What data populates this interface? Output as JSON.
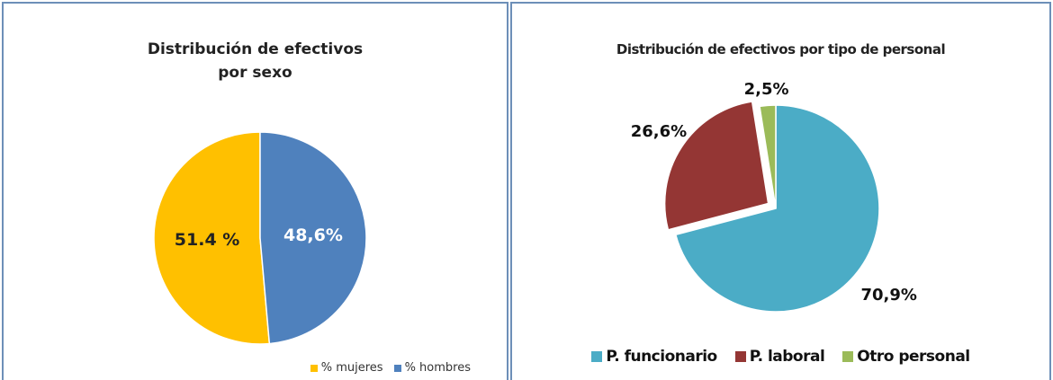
{
  "chart_data": [
    {
      "type": "pie",
      "title": "Distribución de efectivos por sexo",
      "categories": [
        "% mujeres",
        "% hombres"
      ],
      "values": [
        51.4,
        48.6
      ],
      "value_labels": [
        "51.4 %",
        "48,6%"
      ],
      "colors": [
        "#ffc000",
        "#4f81bd"
      ],
      "legend": "bottom-right"
    },
    {
      "type": "pie",
      "title": "Distribución de efectivos por tipo de personal",
      "categories": [
        "P. funcionario",
        "P. laboral",
        "Otro personal"
      ],
      "values": [
        70.9,
        26.6,
        2.5
      ],
      "value_labels": [
        "70,9%",
        "26,6%",
        "2,5%"
      ],
      "colors": [
        "#4bacc6",
        "#943634",
        "#9bbb59"
      ],
      "legend": "bottom"
    }
  ]
}
